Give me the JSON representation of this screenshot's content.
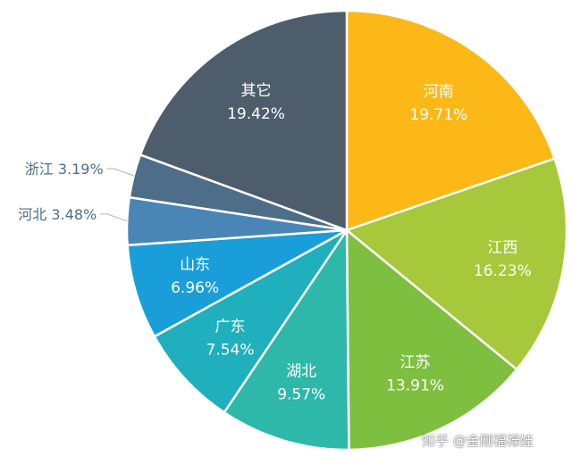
{
  "chart_data": {
    "type": "pie",
    "title": "",
    "start_angle_deg": 0,
    "direction": "clockwise",
    "slices": [
      {
        "name": "河南",
        "value": 19.71,
        "label": "19.71%",
        "color": "#fbb817",
        "label_pos": "inside"
      },
      {
        "name": "江西",
        "value": 16.23,
        "label": "16.23%",
        "color": "#a7c83a",
        "label_pos": "inside"
      },
      {
        "name": "江苏",
        "value": 13.91,
        "label": "13.91%",
        "color": "#7ebf3f",
        "label_pos": "inside"
      },
      {
        "name": "湖北",
        "value": 9.57,
        "label": "9.57%",
        "color": "#2db8a9",
        "label_pos": "inside"
      },
      {
        "name": "广东",
        "value": 7.54,
        "label": "7.54%",
        "color": "#1fafbd",
        "label_pos": "inside"
      },
      {
        "name": "山东",
        "value": 6.96,
        "label": "6.96%",
        "color": "#1a9ed9",
        "label_pos": "inside"
      },
      {
        "name": "河北",
        "value": 3.48,
        "label": "3.48%",
        "color": "#4a86b5",
        "label_pos": "outside"
      },
      {
        "name": "浙江",
        "value": 3.19,
        "label": "3.19%",
        "color": "#4e6d89",
        "label_pos": "outside"
      },
      {
        "name": "其它",
        "value": 19.42,
        "label": "19.42%",
        "color": "#4e5d6c",
        "label_pos": "inside"
      }
    ]
  },
  "watermark": "知乎 @金刚福禄娃"
}
